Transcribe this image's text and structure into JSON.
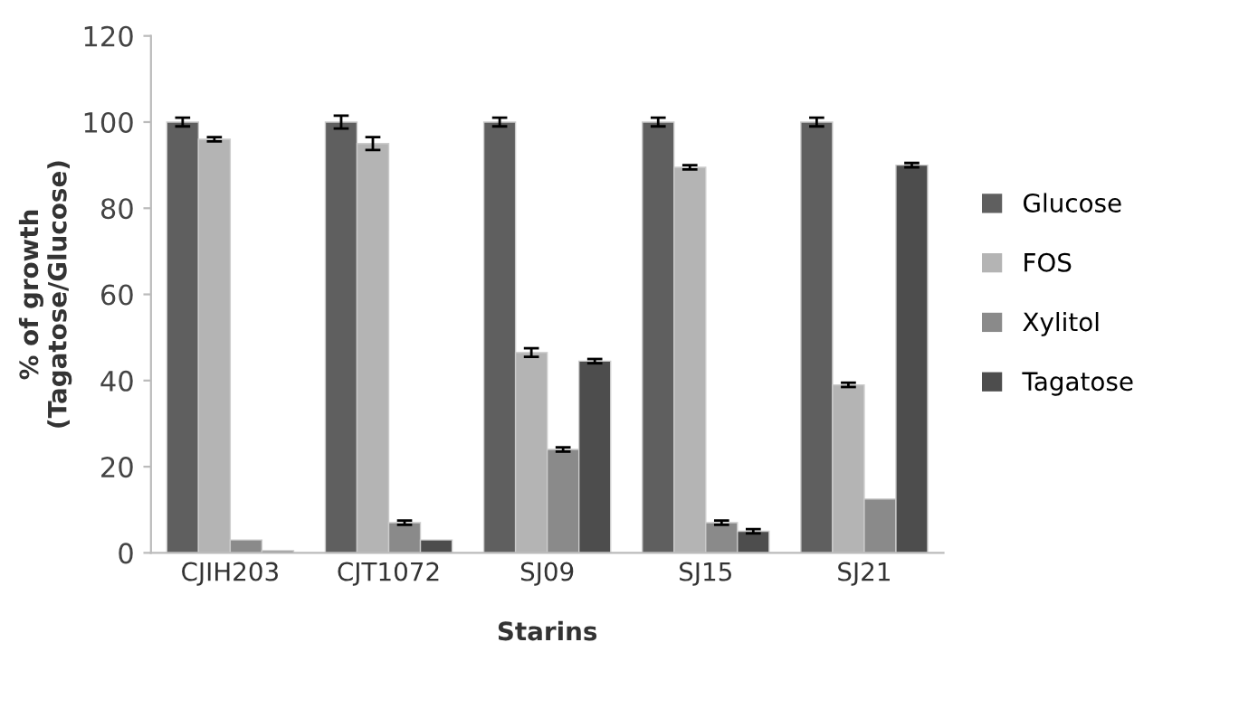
{
  "chart_data": {
    "type": "bar",
    "xlabel": "Starins",
    "ylabel": "% of growth\n(Tagatose/Glucose)",
    "categories": [
      "CJIH203",
      "CJT1072",
      "SJ09",
      "SJ15",
      "SJ21"
    ],
    "series": [
      {
        "name": "Glucose",
        "color": "#5f5f5f",
        "values": [
          100,
          100,
          100,
          100,
          100
        ],
        "errors": [
          1,
          1.5,
          1,
          1,
          1
        ]
      },
      {
        "name": "FOS",
        "color": "#b4b4b4",
        "values": [
          96,
          95,
          46.5,
          89.5,
          39
        ],
        "errors": [
          0.5,
          1.5,
          1,
          0.5,
          0.5
        ]
      },
      {
        "name": "Xylitol",
        "color": "#8a8a8a",
        "values": [
          3,
          7,
          24,
          7,
          12.5
        ],
        "errors": [
          null,
          0.5,
          0.5,
          0.5,
          null
        ]
      },
      {
        "name": "Tagatose",
        "color": "#4d4d4d",
        "values": [
          0.5,
          3,
          44.5,
          5,
          90
        ],
        "errors": [
          null,
          null,
          0.5,
          0.5,
          0.5
        ]
      }
    ],
    "ylim": [
      0,
      120
    ],
    "yticks": [
      0,
      20,
      40,
      60,
      80,
      100,
      120
    ],
    "grid": false,
    "legend": "right"
  }
}
